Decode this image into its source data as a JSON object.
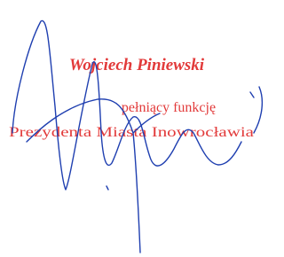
{
  "stamp": {
    "name": "Wojciech Piniewski",
    "role": "pełniący funkcję",
    "office": "Prezydenta Miasta Inowrocławia"
  }
}
